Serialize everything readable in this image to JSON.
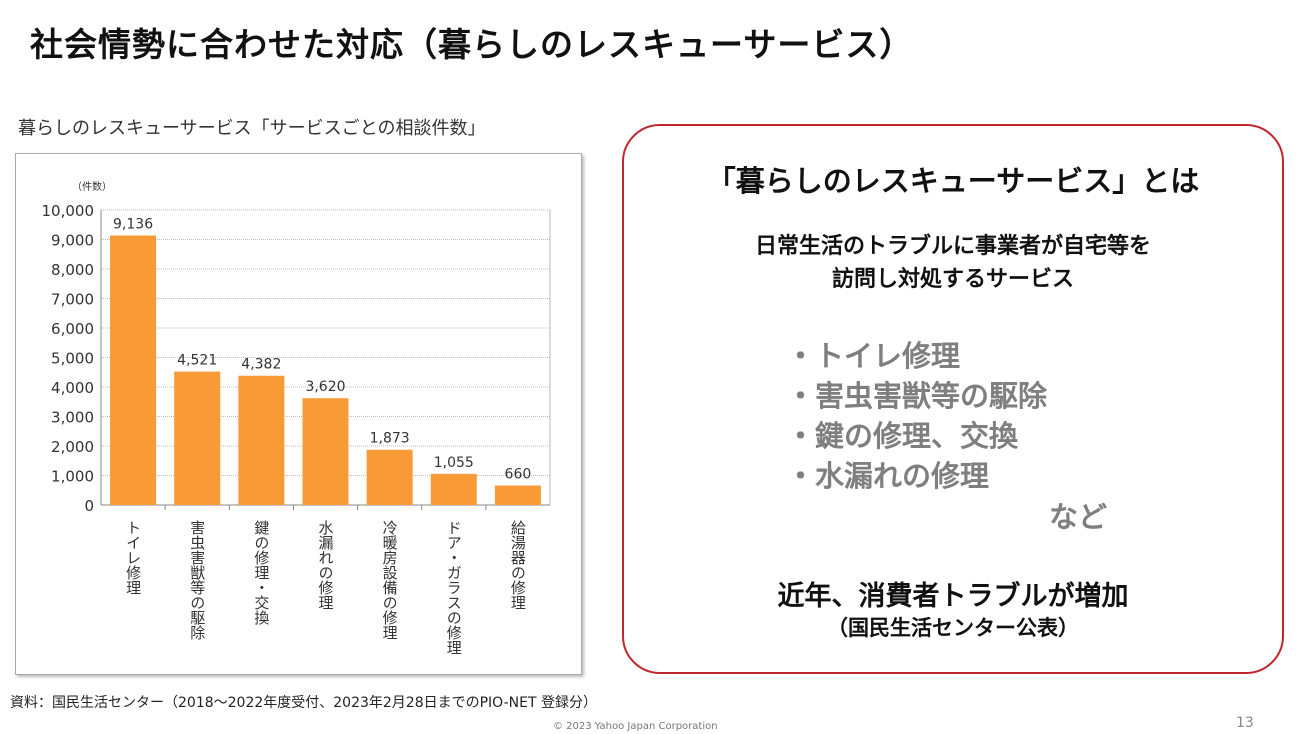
{
  "slide": {
    "title": "社会情勢に合わせた対応（暮らしのレスキューサービス）",
    "page_number": "13",
    "copyright": "© 2023 Yahoo Japan Corporation",
    "source_note": "資料：国民生活センター（2018～2022年度受付、2023年2月28日までのPIO-NET 登録分）"
  },
  "chart_data": {
    "type": "bar",
    "title": "暮らしのレスキューサービス「サービスごとの相談件数」",
    "ylabel": "（件数）",
    "xlabel": "",
    "categories": [
      "トイレ修理",
      "害虫害獣等の駆除",
      "鍵の修理・交換",
      "水漏れの修理",
      "冷暖房設備の修理",
      "ドア・ガラスの修理",
      "給湯器の修理"
    ],
    "values": [
      9136,
      4521,
      4382,
      3620,
      1873,
      1055,
      660
    ],
    "value_labels": [
      "9,136",
      "4,521",
      "4,382",
      "3,620",
      "1,873",
      "1,055",
      "660"
    ],
    "ylim": [
      0,
      10000
    ],
    "yticks": [
      "0",
      "1,000",
      "2,000",
      "3,000",
      "4,000",
      "5,000",
      "6,000",
      "7,000",
      "8,000",
      "9,000",
      "10,000"
    ],
    "grid": true,
    "bar_color": "#f89a35"
  },
  "info_box": {
    "heading": "「暮らしのレスキューサービス」とは",
    "desc_line1": "日常生活のトラブルに事業者が自宅等を",
    "desc_line2": "訪問し対処するサービス",
    "bullets": [
      "・トイレ修理",
      "・害虫害獣等の駆除",
      "・鍵の修理、交換",
      "・水漏れの修理"
    ],
    "etc": "など",
    "trend": "近年、消費者トラブルが増加",
    "trend_source": "（国民生活センター公表）",
    "border_color": "#c0272d"
  }
}
